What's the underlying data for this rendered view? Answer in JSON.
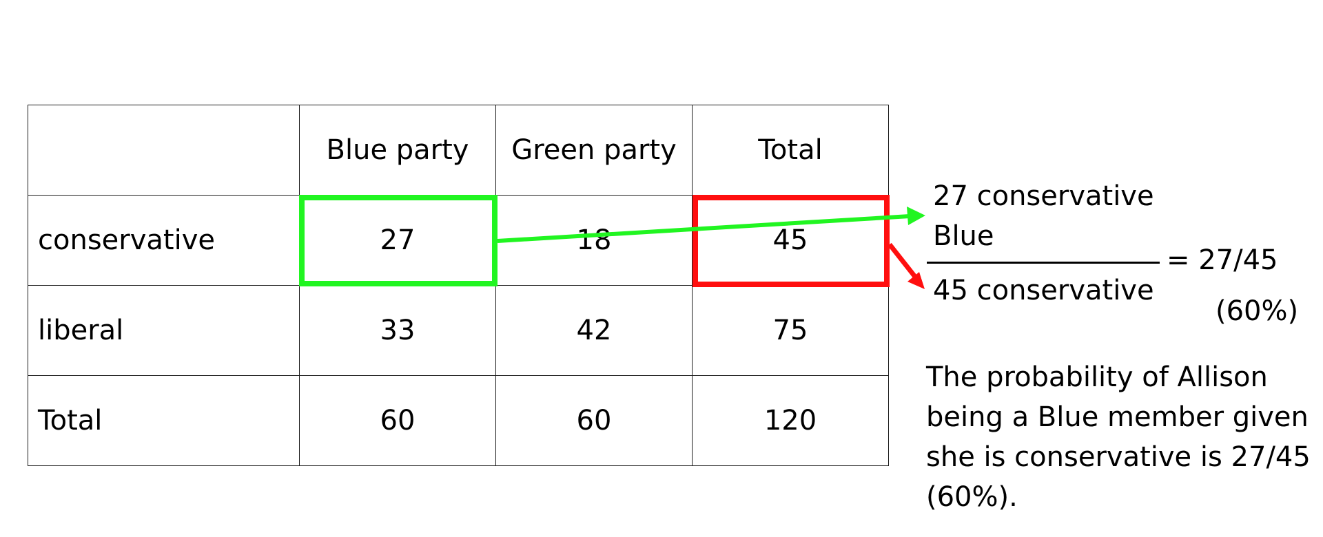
{
  "table": {
    "header": [
      "",
      "Blue party",
      "Green party",
      "Total"
    ],
    "rows": [
      {
        "label": "conservative",
        "values": [
          "27",
          "18",
          "45"
        ]
      },
      {
        "label": "liberal",
        "values": [
          "33",
          "42",
          "75"
        ]
      },
      {
        "label": "Total",
        "values": [
          "60",
          "60",
          "120"
        ]
      }
    ]
  },
  "fraction": {
    "numerator_line1": "27 conservative",
    "numerator_line2": "Blue",
    "denominator": "45 conservative",
    "result": "= 27/45",
    "percent": "(60%)"
  },
  "explanation": "The probability of Allison being a Blue member given she is conservative is 27/45 (60%).",
  "colors": {
    "highlight_blue_cell": "#21f521",
    "highlight_total_cell": "#ff0f0f"
  }
}
